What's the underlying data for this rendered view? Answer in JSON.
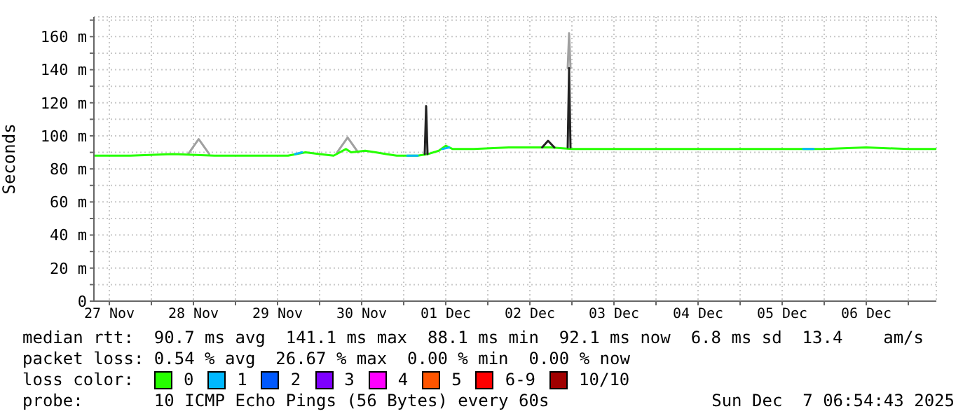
{
  "chart_data": {
    "type": "line",
    "ylabel": "Seconds",
    "legend_title": "loss color:",
    "legend": "bottom",
    "grid": true,
    "marker": "none",
    "line_style": "solid",
    "xlim": [
      "2025-11-27T07:36",
      "2025-12-07T08:00"
    ],
    "xticks": [
      {
        "value": "2025-11-27T12:00",
        "label": "27 Nov"
      },
      {
        "value": "2025-11-28T00:00",
        "label": null
      },
      {
        "value": "2025-11-28T12:00",
        "label": "28 Nov"
      },
      {
        "value": "2025-11-29T00:00",
        "label": null
      },
      {
        "value": "2025-11-29T12:00",
        "label": "29 Nov"
      },
      {
        "value": "2025-11-30T00:00",
        "label": null
      },
      {
        "value": "2025-11-30T12:00",
        "label": "30 Nov"
      },
      {
        "value": "2025-12-01T00:00",
        "label": null
      },
      {
        "value": "2025-12-01T12:00",
        "label": "01 Dec"
      },
      {
        "value": "2025-12-02T00:00",
        "label": null
      },
      {
        "value": "2025-12-02T12:00",
        "label": "02 Dec"
      },
      {
        "value": "2025-12-03T00:00",
        "label": null
      },
      {
        "value": "2025-12-03T12:00",
        "label": "03 Dec"
      },
      {
        "value": "2025-12-04T00:00",
        "label": null
      },
      {
        "value": "2025-12-04T12:00",
        "label": "04 Dec"
      },
      {
        "value": "2025-12-05T00:00",
        "label": null
      },
      {
        "value": "2025-12-05T12:00",
        "label": "05 Dec"
      },
      {
        "value": "2025-12-06T00:00",
        "label": null
      },
      {
        "value": "2025-12-06T12:00",
        "label": "06 Dec"
      },
      {
        "value": "2025-12-07T00:00",
        "label": null
      }
    ],
    "ylim": [
      0,
      172
    ],
    "yticks": [
      0,
      {
        "value": 10,
        "label": null
      },
      {
        "value": 20,
        "label": "20 m"
      },
      {
        "value": 30,
        "label": null
      },
      {
        "value": 40,
        "label": "40 m"
      },
      {
        "value": 50,
        "label": null
      },
      {
        "value": 60,
        "label": "60 m"
      },
      {
        "value": 70,
        "label": null
      },
      {
        "value": 80,
        "label": "80 m"
      },
      {
        "value": 90,
        "label": null
      },
      {
        "value": 100,
        "label": "100 m"
      },
      {
        "value": 110,
        "label": null
      },
      {
        "value": 120,
        "label": "120 m"
      },
      {
        "value": 130,
        "label": null
      },
      {
        "value": 140,
        "label": "140 m"
      },
      {
        "value": 150,
        "label": null
      },
      {
        "value": 160,
        "label": "160 m"
      },
      {
        "value": 170,
        "label": null
      }
    ],
    "series": [
      {
        "color": "#a0a0a0",
        "x": [
          "2025-11-28T10:30",
          "2025-11-28T13:30",
          "2025-11-28T16:30",
          "2025-11-28T17:00",
          "2025-11-30T05:00",
          "2025-11-30T08:00",
          "2025-11-30T11:00",
          "2025-11-30T11:30",
          "2025-12-02T22:48",
          "2025-12-02T23:12",
          "2025-12-02T23:36"
        ],
        "values": [
          89,
          98,
          89,
          null,
          90,
          99,
          90,
          null,
          141,
          162,
          141
        ]
      },
      {
        "name": "0",
        "color": "#26ff00",
        "x": [
          "2025-11-27T07:36",
          "2025-11-27T18:00",
          "2025-11-28T06:00",
          "2025-11-28T18:00",
          "2025-11-29T06:00",
          "2025-11-29T15:00",
          "2025-11-29T20:00",
          "2025-11-30T00:00",
          "2025-11-30T04:00",
          "2025-11-30T07:30",
          "2025-11-30T09:00",
          "2025-11-30T13:00",
          "2025-11-30T16:00",
          "2025-11-30T19:00",
          "2025-11-30T22:00",
          "2025-12-01T04:00",
          "2025-12-01T07:00",
          "2025-12-01T10:00",
          "2025-12-01T12:00",
          "2025-12-01T14:00",
          "2025-12-01T20:00",
          "2025-12-02T06:00",
          "2025-12-02T18:00",
          "2025-12-03T00:00",
          "2025-12-03T12:00",
          "2025-12-04T00:00",
          "2025-12-04T12:00",
          "2025-12-05T00:00",
          "2025-12-05T12:00",
          "2025-12-06T00:00",
          "2025-12-06T12:00",
          "2025-12-07T00:00",
          "2025-12-07T08:00"
        ],
        "values": [
          88,
          88,
          89,
          88,
          88,
          88,
          90,
          89,
          88,
          92,
          90,
          91,
          90,
          89,
          88,
          88,
          89,
          91,
          94,
          92,
          92,
          93,
          93,
          92,
          92,
          92,
          92,
          92,
          92,
          92,
          93,
          92,
          92
        ]
      },
      {
        "name": "1",
        "color": "#00b8ff",
        "x": [
          "2025-11-29T17:00",
          "2025-11-29T19:00",
          "2025-11-29T20:00",
          "2025-12-01T01:00",
          "2025-12-01T04:00",
          "2025-12-01T05:00",
          "2025-12-01T11:00",
          "2025-12-01T13:00",
          "2025-12-01T14:00",
          "2025-12-05T18:00",
          "2025-12-05T21:00"
        ],
        "values": [
          89,
          90,
          null,
          88,
          88,
          null,
          92,
          93,
          null,
          92,
          92
        ]
      },
      {
        "name": "2",
        "color": "#0059ff"
      },
      {
        "name": "3",
        "color": "#7e00ff"
      },
      {
        "name": "4",
        "color": "#ff00ff"
      },
      {
        "name": "5",
        "color": "#ff5500"
      },
      {
        "name": "6-9",
        "color": "#ff0000"
      },
      {
        "name": "10/10",
        "color": "#a10000"
      },
      {
        "color": "#222222",
        "x": [
          "2025-12-01T06:00",
          "2025-12-01T06:24",
          "2025-12-01T06:48",
          "2025-12-01T07:00",
          "2025-12-02T15:30",
          "2025-12-02T17:12",
          "2025-12-02T19:00",
          "2025-12-02T19:30",
          "2025-12-02T22:48",
          "2025-12-02T23:12",
          "2025-12-02T23:36"
        ],
        "values": [
          89,
          118,
          89,
          null,
          93,
          97,
          93,
          null,
          93,
          141,
          93
        ]
      }
    ],
    "annotations": [
      "median rtt:  90.7 ms avg  141.1 ms max  88.1 ms min  92.1 ms now  6.8 ms sd  13.4    am/s",
      "packet loss: 0.54 % avg  26.67 % max  0.00 % min  0.00 % now",
      "probe:       10 ICMP Echo Pings (56 Bytes) every 60s",
      "Sun Dec  7 06:54:43 2025"
    ]
  }
}
